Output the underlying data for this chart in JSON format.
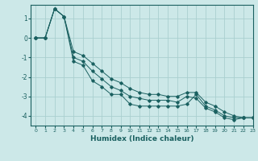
{
  "xlabel": "Humidex (Indice chaleur)",
  "background_color": "#cce8e8",
  "grid_color": "#aacfcf",
  "line_color": "#1a6060",
  "xlim": [
    -0.5,
    23
  ],
  "ylim": [
    -4.5,
    1.7
  ],
  "yticks": [
    -4,
    -3,
    -2,
    -1,
    0,
    1
  ],
  "xticks": [
    0,
    1,
    2,
    3,
    4,
    5,
    6,
    7,
    8,
    9,
    10,
    11,
    12,
    13,
    14,
    15,
    16,
    17,
    18,
    19,
    20,
    21,
    22,
    23
  ],
  "series1_x": [
    0,
    1,
    2,
    3,
    4,
    5,
    6,
    7,
    8,
    9,
    10,
    11,
    12,
    13,
    14,
    15,
    16,
    17,
    18,
    19,
    20,
    21,
    22,
    23
  ],
  "series1_y": [
    0.0,
    0.0,
    1.5,
    1.1,
    -1.2,
    -1.4,
    -2.2,
    -2.5,
    -2.9,
    -2.9,
    -3.4,
    -3.5,
    -3.5,
    -3.5,
    -3.5,
    -3.5,
    -3.4,
    -2.9,
    -3.5,
    -3.7,
    -4.0,
    -4.1,
    -4.1,
    -4.1
  ],
  "series2_x": [
    0,
    1,
    2,
    3,
    4,
    5,
    6,
    7,
    8,
    9,
    10,
    11,
    12,
    13,
    14,
    15,
    16,
    17,
    18,
    19,
    20,
    21,
    22,
    23
  ],
  "series2_y": [
    0.0,
    0.0,
    1.5,
    1.1,
    -1.0,
    -1.2,
    -1.7,
    -2.1,
    -2.5,
    -2.7,
    -3.0,
    -3.1,
    -3.2,
    -3.2,
    -3.2,
    -3.3,
    -3.0,
    -3.1,
    -3.6,
    -3.8,
    -4.1,
    -4.2,
    -4.1,
    -4.1
  ],
  "series3_x": [
    0,
    1,
    2,
    3,
    4,
    5,
    6,
    7,
    8,
    9,
    10,
    11,
    12,
    13,
    14,
    15,
    16,
    17,
    18,
    19,
    20,
    21,
    22,
    23
  ],
  "series3_y": [
    0.0,
    0.0,
    1.5,
    1.1,
    -0.7,
    -0.9,
    -1.3,
    -1.7,
    -2.1,
    -2.3,
    -2.6,
    -2.8,
    -2.9,
    -2.9,
    -3.0,
    -3.0,
    -2.8,
    -2.8,
    -3.3,
    -3.5,
    -3.8,
    -4.0,
    -4.1,
    -4.1
  ]
}
